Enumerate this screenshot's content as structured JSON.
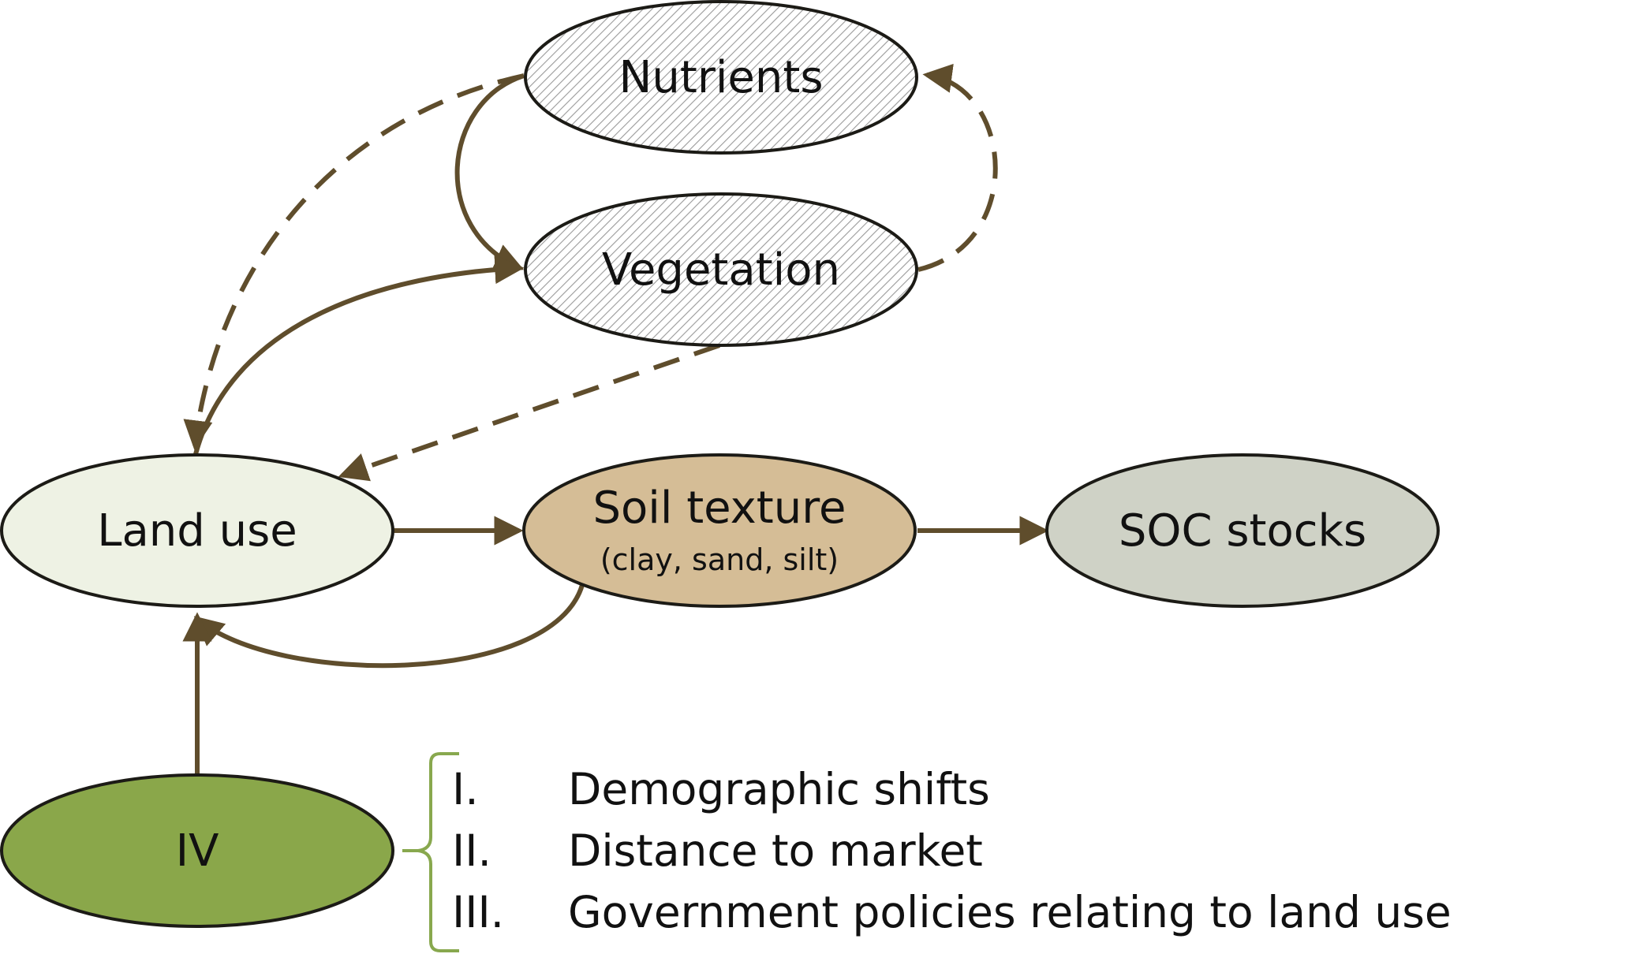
{
  "nodes": {
    "nutrients": {
      "label": "Nutrients"
    },
    "vegetation": {
      "label": "Vegetation"
    },
    "land_use": {
      "label": "Land use"
    },
    "soil_texture": {
      "label": "Soil texture",
      "sublabel": "(clay, sand, silt)"
    },
    "soc_stocks": {
      "label": "SOC stocks"
    },
    "iv": {
      "label": "IV"
    }
  },
  "factors": [
    {
      "numeral": "I.",
      "text": "Demographic shifts"
    },
    {
      "numeral": "II.",
      "text": "Distance to market"
    },
    {
      "numeral": "III.",
      "text": "Government policies relating to land use"
    }
  ],
  "colors": {
    "arrow": "#5f4d2c",
    "outline": "#1c1b16",
    "land_use_fill": "#eef2e4",
    "soil_texture_fill": "#d5bd96",
    "soc_stocks_fill": "#cfd2c6",
    "iv_fill": "#8aa74a",
    "hatch_line": "#9a9a9a",
    "bracket": "#88a84e"
  }
}
